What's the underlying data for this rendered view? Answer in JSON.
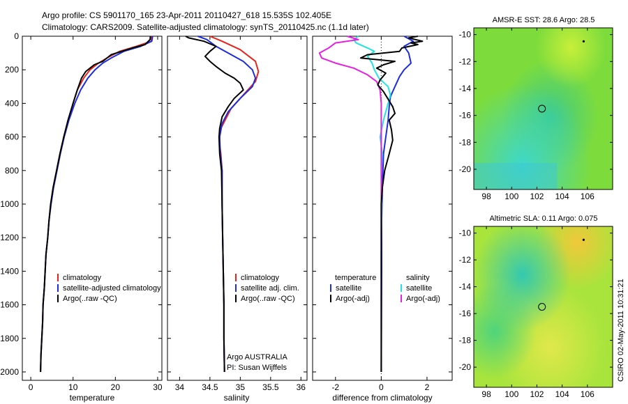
{
  "header": {
    "line1": "Argo profile: CS 5901170_165 23-Apr-2011 20110427_618 15.535S 102.405E",
    "line2": "Climatology: CARS2009. Satellite-adjusted climatology: synTS_20110425.nc (1.1d later)"
  },
  "footer": {
    "credit": "CSIRO 02-May-2011 10:31:21",
    "argo_line1": "Argo AUSTRALIA",
    "argo_line2": "PI: Susan Wijffels"
  },
  "colors": {
    "climatology": "#e8231c",
    "satellite": "#1c2ce0",
    "argo": "#000000",
    "sal_satellite": "#22e3e3",
    "sal_argo": "#e620e0"
  },
  "chart_data": [
    {
      "type": "line",
      "panel": "temperature",
      "xlabel": "temperature",
      "ylim": [
        0,
        2050
      ],
      "y_reversed": true,
      "xlim": [
        -2,
        31
      ],
      "xticks": [
        0,
        10,
        20,
        30
      ],
      "yticks": [
        0,
        200,
        400,
        600,
        800,
        1000,
        1200,
        1400,
        1600,
        1800,
        2000
      ],
      "legend": [
        "climatology",
        "satellite-adjusted climatology",
        "Argo(..raw -QC)"
      ],
      "series": [
        {
          "name": "climatology",
          "color_key": "climatology",
          "points": [
            [
              28.6,
              0
            ],
            [
              28.5,
              30
            ],
            [
              25,
              60
            ],
            [
              21,
              90
            ],
            [
              18,
              130
            ],
            [
              16,
              160
            ],
            [
              14,
              200
            ],
            [
              12.5,
              250
            ],
            [
              11,
              320
            ],
            [
              10,
              400
            ],
            [
              8.8,
              500
            ],
            [
              7.8,
              600
            ],
            [
              6.9,
              700
            ],
            [
              6.1,
              800
            ],
            [
              5.3,
              900
            ],
            [
              4.7,
              1000
            ],
            [
              4.3,
              1100
            ],
            [
              4.0,
              1200
            ],
            [
              3.6,
              1300
            ],
            [
              3.4,
              1400
            ],
            [
              3.2,
              1500
            ],
            [
              2.9,
              1600
            ],
            [
              2.8,
              1700
            ],
            [
              2.6,
              1800
            ],
            [
              2.4,
              1900
            ],
            [
              2.3,
              2000
            ]
          ]
        },
        {
          "name": "satellite-adjusted climatology",
          "color_key": "satellite",
          "points": [
            [
              28.8,
              0
            ],
            [
              28.6,
              30
            ],
            [
              26,
              60
            ],
            [
              22,
              90
            ],
            [
              19,
              130
            ],
            [
              17,
              160
            ],
            [
              15.2,
              200
            ],
            [
              13.5,
              250
            ],
            [
              11.8,
              320
            ],
            [
              10.4,
              400
            ],
            [
              9.0,
              500
            ],
            [
              7.9,
              600
            ],
            [
              7.0,
              700
            ],
            [
              6.2,
              800
            ],
            [
              5.4,
              900
            ],
            [
              4.8,
              1000
            ],
            [
              4.3,
              1100
            ],
            [
              4.0,
              1200
            ],
            [
              3.6,
              1300
            ],
            [
              3.4,
              1400
            ],
            [
              3.2,
              1500
            ],
            [
              2.9,
              1600
            ],
            [
              2.8,
              1700
            ],
            [
              2.6,
              1800
            ],
            [
              2.4,
              1900
            ],
            [
              2.3,
              2000
            ]
          ]
        },
        {
          "name": "Argo(..raw -QC)",
          "color_key": "argo",
          "points": [
            [
              28.3,
              0
            ],
            [
              28.2,
              20
            ],
            [
              27,
              50
            ],
            [
              24,
              70
            ],
            [
              19,
              110
            ],
            [
              17,
              150
            ],
            [
              15,
              170
            ],
            [
              14,
              190
            ],
            [
              13,
              210
            ],
            [
              12,
              250
            ],
            [
              11,
              320
            ],
            [
              10,
              400
            ],
            [
              8.8,
              500
            ],
            [
              7.8,
              600
            ],
            [
              6.9,
              700
            ],
            [
              6.1,
              800
            ],
            [
              5.3,
              900
            ],
            [
              4.7,
              1000
            ],
            [
              4.3,
              1100
            ],
            [
              4.0,
              1200
            ],
            [
              3.6,
              1300
            ],
            [
              3.4,
              1400
            ],
            [
              3.2,
              1500
            ],
            [
              2.9,
              1600
            ],
            [
              2.8,
              1700
            ],
            [
              2.6,
              1800
            ],
            [
              2.4,
              1900
            ],
            [
              2.3,
              2000
            ]
          ]
        }
      ]
    },
    {
      "type": "line",
      "panel": "salinity",
      "xlabel": "salinity",
      "ylim": [
        0,
        2050
      ],
      "y_reversed": true,
      "xlim": [
        33.8,
        36.1
      ],
      "xticks": [
        34,
        34.5,
        35,
        35.5,
        36
      ],
      "legend": [
        "climatology",
        "satellite adj. clim.",
        "Argo(..raw -QC)"
      ],
      "series": [
        {
          "name": "climatology",
          "color_key": "climatology",
          "points": [
            [
              34.5,
              0
            ],
            [
              34.7,
              30
            ],
            [
              35.0,
              80
            ],
            [
              35.25,
              150
            ],
            [
              35.3,
              210
            ],
            [
              35.25,
              270
            ],
            [
              35.05,
              350
            ],
            [
              34.85,
              430
            ],
            [
              34.75,
              500
            ],
            [
              34.68,
              550
            ],
            [
              34.66,
              600
            ],
            [
              34.66,
              650
            ],
            [
              34.68,
              700
            ],
            [
              34.7,
              800
            ],
            [
              34.7,
              1000
            ],
            [
              34.71,
              1200
            ],
            [
              34.72,
              1400
            ],
            [
              34.73,
              1600
            ],
            [
              34.73,
              1800
            ],
            [
              34.74,
              2000
            ]
          ]
        },
        {
          "name": "satellite adj. clim.",
          "color_key": "satellite",
          "points": [
            [
              34.3,
              0
            ],
            [
              34.45,
              20
            ],
            [
              34.6,
              60
            ],
            [
              34.8,
              100
            ],
            [
              35.05,
              150
            ],
            [
              35.2,
              200
            ],
            [
              35.25,
              250
            ],
            [
              35.2,
              300
            ],
            [
              35.0,
              370
            ],
            [
              34.8,
              450
            ],
            [
              34.7,
              520
            ],
            [
              34.66,
              600
            ],
            [
              34.67,
              700
            ],
            [
              34.7,
              800
            ],
            [
              34.7,
              1000
            ],
            [
              34.71,
              1200
            ],
            [
              34.72,
              1400
            ],
            [
              34.73,
              1600
            ],
            [
              34.73,
              1800
            ],
            [
              34.74,
              2000
            ]
          ]
        },
        {
          "name": "Argo(..raw -QC)",
          "color_key": "argo",
          "points": [
            [
              34.1,
              0
            ],
            [
              34.15,
              10
            ],
            [
              34.4,
              30
            ],
            [
              34.6,
              60
            ],
            [
              34.5,
              90
            ],
            [
              34.42,
              120
            ],
            [
              34.5,
              150
            ],
            [
              34.6,
              180
            ],
            [
              34.75,
              220
            ],
            [
              34.9,
              250
            ],
            [
              35.0,
              280
            ],
            [
              35.05,
              320
            ],
            [
              34.9,
              370
            ],
            [
              34.8,
              420
            ],
            [
              34.7,
              480
            ],
            [
              34.66,
              550
            ],
            [
              34.65,
              600
            ],
            [
              34.66,
              700
            ],
            [
              34.69,
              800
            ],
            [
              34.7,
              1000
            ],
            [
              34.71,
              1200
            ],
            [
              34.72,
              1400
            ],
            [
              34.73,
              1600
            ],
            [
              34.73,
              1800
            ],
            [
              34.74,
              2000
            ]
          ]
        }
      ]
    },
    {
      "type": "line",
      "panel": "difference",
      "xlabel": "difference from climatology",
      "ylim": [
        0,
        2050
      ],
      "y_reversed": true,
      "xlim": [
        -3,
        3.1
      ],
      "xticks": [
        -2,
        0,
        2
      ],
      "legend_left_title": "temperature",
      "legend_right_title": "salinity",
      "legend": [
        "satellite",
        "Argo(-adj)",
        "satellite",
        "Argo(-adj)"
      ],
      "series": [
        {
          "name": "temperature satellite",
          "color_key": "satellite",
          "points": [
            [
              1.0,
              0
            ],
            [
              1.4,
              30
            ],
            [
              1.0,
              60
            ],
            [
              1.2,
              100
            ],
            [
              1.3,
              160
            ],
            [
              1.0,
              200
            ],
            [
              0.8,
              240
            ],
            [
              0.6,
              300
            ],
            [
              0.4,
              360
            ],
            [
              0.35,
              420
            ],
            [
              0.3,
              500
            ],
            [
              0.2,
              600
            ],
            [
              0.1,
              700
            ],
            [
              0.05,
              900
            ],
            [
              0.02,
              1100
            ],
            [
              0.02,
              1400
            ],
            [
              0.01,
              1700
            ],
            [
              0.0,
              2000
            ]
          ]
        },
        {
          "name": "salinity satellite",
          "color_key": "sal_satellite",
          "points": [
            [
              -1.0,
              0
            ],
            [
              -1.2,
              20
            ],
            [
              -1.1,
              40
            ],
            [
              -0.6,
              70
            ],
            [
              -0.3,
              90
            ],
            [
              -0.6,
              120
            ],
            [
              -0.4,
              160
            ],
            [
              -0.3,
              200
            ],
            [
              -0.1,
              250
            ],
            [
              0.3,
              300
            ],
            [
              0.4,
              350
            ],
            [
              0.3,
              400
            ],
            [
              0.1,
              500
            ],
            [
              -0.05,
              600
            ],
            [
              0.05,
              700
            ],
            [
              0.0,
              800
            ],
            [
              0.02,
              1000
            ],
            [
              0.0,
              1300
            ],
            [
              0.0,
              1700
            ],
            [
              0.0,
              2000
            ]
          ]
        },
        {
          "name": "salinity Argo(-adj)",
          "color_key": "sal_argo",
          "points": [
            [
              -1.5,
              0
            ],
            [
              -1.0,
              20
            ],
            [
              -2.0,
              40
            ],
            [
              -2.3,
              70
            ],
            [
              -2.7,
              100
            ],
            [
              -2.6,
              130
            ],
            [
              -2.0,
              160
            ],
            [
              -1.2,
              190
            ],
            [
              -0.6,
              230
            ],
            [
              -0.2,
              270
            ],
            [
              -0.05,
              320
            ],
            [
              0.0,
              400
            ],
            [
              0.0,
              600
            ],
            [
              0.0,
              800
            ],
            [
              0.0,
              1000
            ],
            [
              0.0,
              1300
            ],
            [
              0.0,
              1700
            ],
            [
              0.0,
              2000
            ]
          ]
        },
        {
          "name": "temperature Argo(-adj)",
          "color_key": "argo",
          "points": [
            [
              1.6,
              0
            ],
            [
              1.2,
              10
            ],
            [
              1.5,
              20
            ],
            [
              1.8,
              30
            ],
            [
              1.3,
              40
            ],
            [
              1.6,
              50
            ],
            [
              0.9,
              70
            ],
            [
              0.8,
              90
            ],
            [
              -0.6,
              110
            ],
            [
              -0.9,
              130
            ],
            [
              0.6,
              150
            ],
            [
              0.1,
              170
            ],
            [
              -0.2,
              190
            ],
            [
              0.2,
              220
            ],
            [
              -0.05,
              260
            ],
            [
              -0.15,
              290
            ],
            [
              0.1,
              330
            ],
            [
              0.5,
              420
            ],
            [
              0.6,
              460
            ],
            [
              0.35,
              500
            ],
            [
              0.45,
              560
            ],
            [
              0.5,
              620
            ],
            [
              0.35,
              700
            ],
            [
              0.15,
              800
            ],
            [
              0.05,
              900
            ],
            [
              0.0,
              1000
            ],
            [
              0.0,
              1200
            ],
            [
              0.0,
              1500
            ],
            [
              0.0,
              1800
            ],
            [
              0.0,
              2000
            ]
          ]
        }
      ]
    },
    {
      "type": "heatmap",
      "panel": "sst-map",
      "title": "AMSR-E SST: 28.6 Argo: 28.5",
      "xlim": [
        97,
        108
      ],
      "ylim": [
        -21.5,
        -9.5
      ],
      "xticks": [
        98,
        100,
        102,
        104,
        106
      ],
      "yticks": [
        -10,
        -12,
        -14,
        -16,
        -18,
        -20
      ],
      "profile_location": [
        102.4,
        -15.5
      ],
      "marker": [
        105.7,
        -10.5
      ]
    },
    {
      "type": "heatmap",
      "panel": "sla-map",
      "title": "Altimetric SLA: 0.11 Argo: 0.075",
      "xlim": [
        97,
        108
      ],
      "ylim": [
        -21.5,
        -9.5
      ],
      "xticks": [
        98,
        100,
        102,
        104,
        106
      ],
      "yticks": [
        -10,
        -12,
        -14,
        -16,
        -18,
        -20
      ],
      "profile_location": [
        102.4,
        -15.5
      ],
      "marker": [
        105.7,
        -10.5
      ]
    }
  ]
}
